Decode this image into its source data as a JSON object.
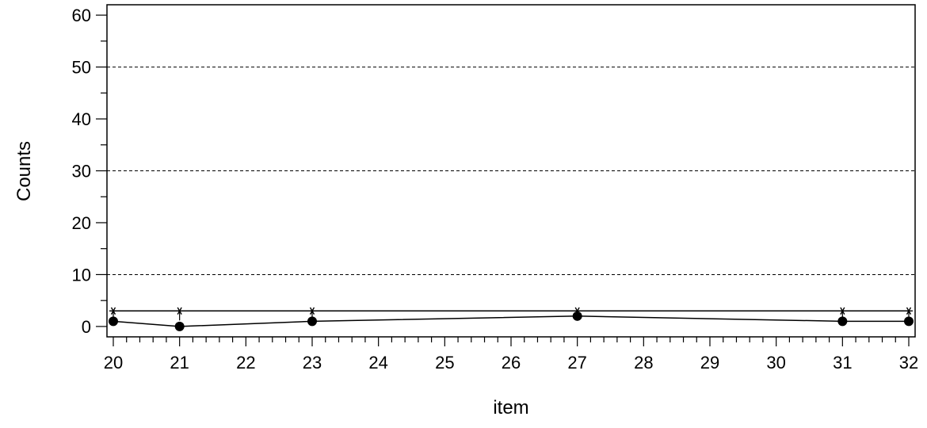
{
  "chart_data": {
    "type": "line",
    "xlabel": "item",
    "ylabel": "Counts",
    "xlim": [
      20,
      32
    ],
    "ylim": [
      -2,
      62
    ],
    "x_ticks": [
      20,
      21,
      22,
      23,
      24,
      25,
      26,
      27,
      28,
      29,
      30,
      31,
      32
    ],
    "y_ticks": [
      0,
      10,
      20,
      30,
      40,
      50,
      60
    ],
    "reference_lines": [
      10,
      30,
      50
    ],
    "grid": false,
    "series": [
      {
        "marker": "circle",
        "color": "#000000",
        "x": [
          20,
          21,
          23,
          27,
          31,
          32
        ],
        "y": [
          1,
          0,
          1,
          2,
          1,
          1
        ]
      },
      {
        "marker": "star",
        "color": "#000000",
        "x": [
          20,
          21,
          23,
          27,
          31,
          32
        ],
        "y": [
          3,
          3,
          3,
          3,
          3,
          3
        ]
      }
    ]
  }
}
